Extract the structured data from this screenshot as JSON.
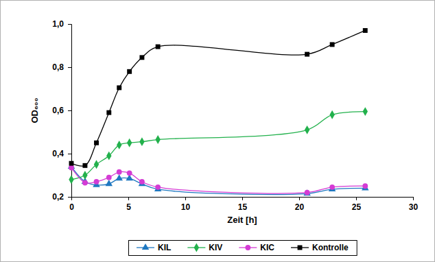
{
  "chart_data": {
    "type": "line",
    "x_label": "Zeit [h]",
    "y_label": "OD₆₀₀",
    "x": [
      0,
      1.2,
      2.2,
      3.3,
      4.2,
      5.1,
      6.2,
      7.6,
      20.7,
      22.9,
      25.8
    ],
    "xlim": [
      0,
      30
    ],
    "xticks": [
      0,
      5,
      10,
      15,
      20,
      25,
      30
    ],
    "ylim": [
      0.2,
      1.0
    ],
    "yticks": [
      {
        "value": 0.2,
        "label": "0,2"
      },
      {
        "value": 0.4,
        "label": "0,4"
      },
      {
        "value": 0.6,
        "label": "0,6"
      },
      {
        "value": 0.8,
        "label": "0,8"
      },
      {
        "value": 1.0,
        "label": "1,0"
      }
    ],
    "grid": false,
    "legend": "bottom",
    "line_style": "smooth",
    "series": [
      {
        "name": "KIL",
        "color": "#1f78c1",
        "marker": "triangle",
        "values": [
          0.34,
          0.27,
          0.255,
          0.26,
          0.285,
          0.285,
          0.26,
          0.235,
          0.215,
          0.235,
          0.24
        ]
      },
      {
        "name": "KIV",
        "color": "#22b14c",
        "marker": "diamond",
        "values": [
          0.28,
          0.3,
          0.35,
          0.39,
          0.44,
          0.45,
          0.455,
          0.465,
          0.51,
          0.58,
          0.595
        ]
      },
      {
        "name": "KIC",
        "color": "#d43bd4",
        "marker": "circle",
        "values": [
          0.335,
          0.265,
          0.27,
          0.29,
          0.315,
          0.31,
          0.27,
          0.245,
          0.22,
          0.245,
          0.25
        ]
      },
      {
        "name": "Kontrolle",
        "color": "#000000",
        "marker": "square",
        "values": [
          0.355,
          0.345,
          0.45,
          0.59,
          0.705,
          0.78,
          0.845,
          0.895,
          0.86,
          0.905,
          0.97
        ]
      }
    ]
  }
}
